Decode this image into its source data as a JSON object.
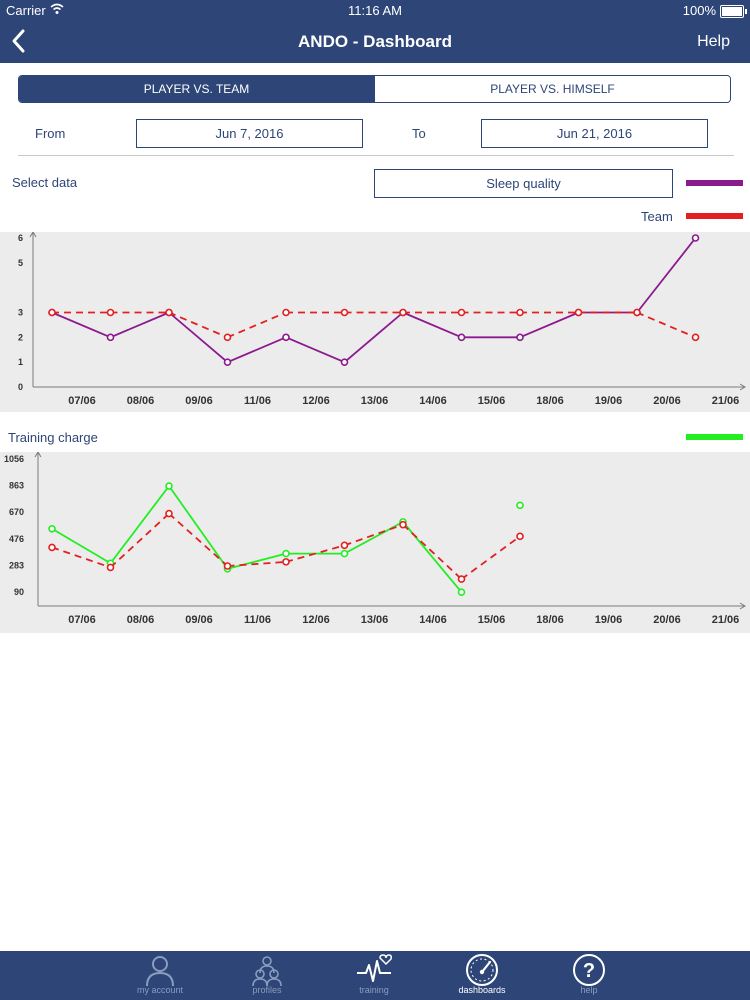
{
  "status": {
    "carrier": "Carrier",
    "time": "11:16 AM",
    "battery": "100%"
  },
  "nav": {
    "back_icon": "chevron-left-icon",
    "title": "ANDO - Dashboard",
    "help": "Help"
  },
  "tabs_segment": {
    "team": "PLAYER VS. TEAM",
    "himself": "PLAYER VS. HIMSELF"
  },
  "filters": {
    "from_label": "From",
    "from_value": "Jun 7, 2016",
    "to_label": "To",
    "to_value": "Jun 21, 2016",
    "select_label": "Select data",
    "select_value": "Sleep quality",
    "team_label": "Team"
  },
  "colors": {
    "primary": "#2d4577",
    "player": "#8b1a8e",
    "team": "#e32020",
    "training": "#22ee22"
  },
  "chart_data": [
    {
      "type": "line",
      "title": "",
      "x": [
        "07/06",
        "08/06",
        "09/06",
        "11/06",
        "12/06",
        "13/06",
        "14/06",
        "15/06",
        "18/06",
        "19/06",
        "20/06",
        "21/06"
      ],
      "yticks": [
        "0",
        "1",
        "2",
        "3",
        "5",
        "6"
      ],
      "series": [
        {
          "values": [
            3,
            2,
            3,
            1,
            2,
            1,
            3,
            2,
            2,
            3,
            3,
            6
          ]
        },
        {
          "name": "Team",
          "values": [
            3,
            3,
            3,
            2,
            3,
            3,
            3,
            3,
            3,
            3,
            3,
            2
          ]
        }
      ]
    },
    {
      "type": "line",
      "title": "Training charge",
      "x": [
        "07/06",
        "08/06",
        "09/06",
        "11/06",
        "12/06",
        "13/06",
        "14/06",
        "15/06",
        "18/06",
        "19/06",
        "20/06",
        "21/06"
      ],
      "yticks": [
        "90",
        "283",
        "476",
        "670",
        "863",
        "1056"
      ],
      "series": [
        {
          "values": [
            550,
            300,
            860,
            260,
            370,
            370,
            600,
            90,
            720,
            null,
            null,
            null
          ]
        },
        {
          "values": [
            415,
            270,
            660,
            280,
            310,
            430,
            580,
            185,
            495,
            null,
            null,
            null
          ]
        }
      ]
    }
  ],
  "tabbar": [
    {
      "label": "my account",
      "icon": "person-icon"
    },
    {
      "label": "profiles",
      "icon": "group-icon"
    },
    {
      "label": "training",
      "icon": "heartbeat-icon"
    },
    {
      "label": "dashboards",
      "icon": "speedometer-icon"
    },
    {
      "label": "help",
      "icon": "question-icon"
    }
  ]
}
